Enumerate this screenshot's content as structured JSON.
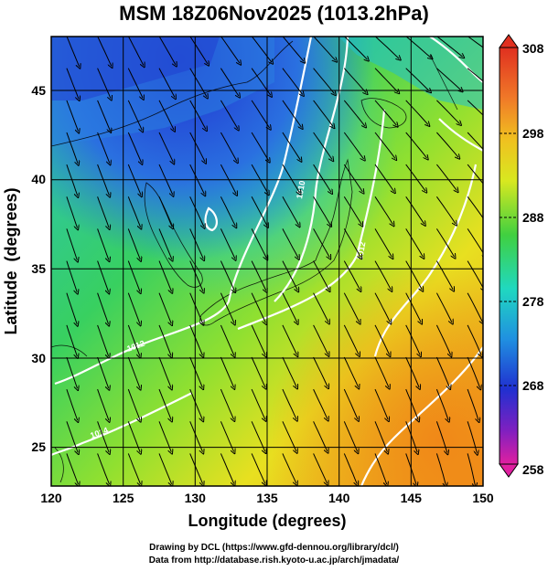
{
  "title": "MSM 18Z06Nov2025 (1013.2hPa)",
  "axes": {
    "xlabel": "Longitude (degrees)",
    "ylabel": "Latitude  (degrees)",
    "xticks": [
      "120",
      "125",
      "130",
      "135",
      "140",
      "145",
      "150"
    ],
    "yticks": [
      "25",
      "30",
      "35",
      "40",
      "45"
    ],
    "xlim": [
      120,
      150
    ],
    "ylim": [
      22.4,
      47.6
    ]
  },
  "colorbar": {
    "ticks": [
      "308",
      "298",
      "288",
      "278",
      "268",
      "258"
    ],
    "range": [
      258,
      308
    ],
    "units_implied": "K"
  },
  "contour_labels": [
    "1010",
    "1012",
    "1012",
    "1014",
    "1016",
    "1018",
    "1020"
  ],
  "credits": {
    "line1": "Drawing by DCL (https://www.gfd-dennou.org/library/dcl/)",
    "line2": "Data from http://database.rish.kyoto-u.ac.jp/arch/jmadata/"
  },
  "colors": {
    "cold": "#2030d0",
    "cool": "#20c8d0",
    "mild": "#30d050",
    "warm": "#e8e020",
    "hot": "#f0a020",
    "isobar": "#ffffff"
  }
}
